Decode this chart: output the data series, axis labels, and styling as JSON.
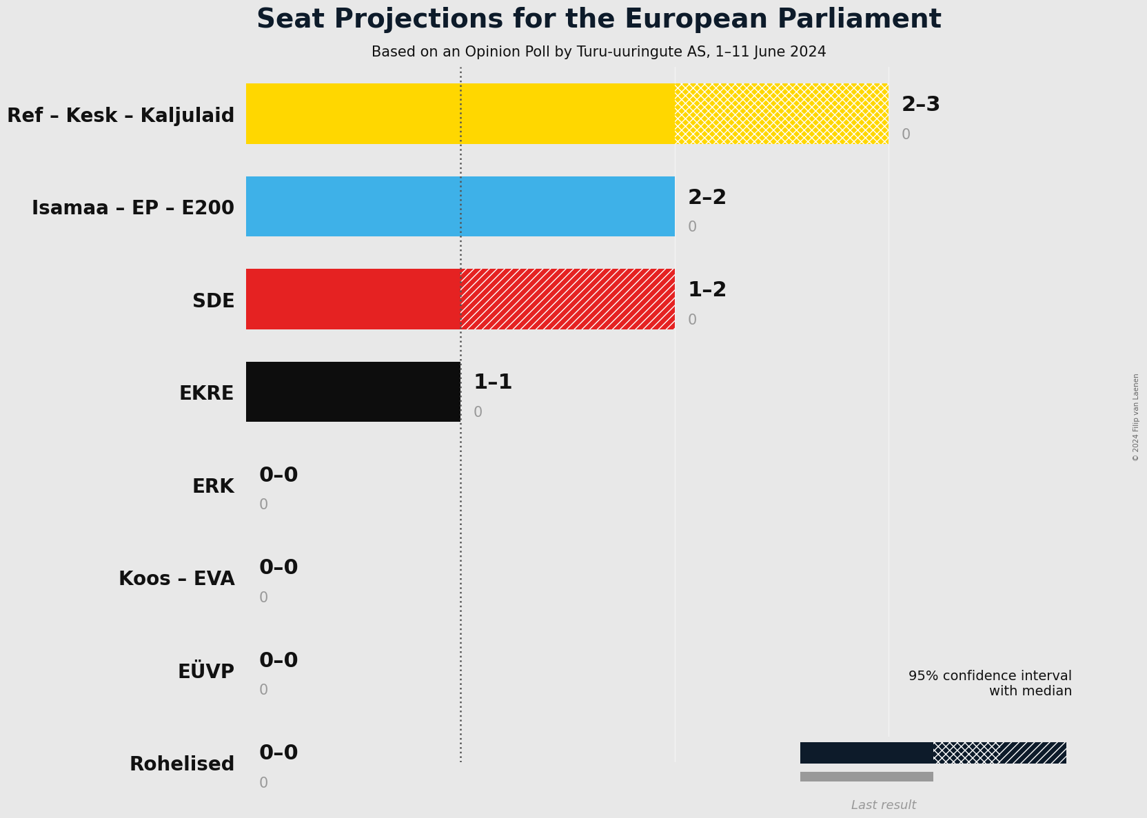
{
  "title": "Seat Projections for the European Parliament",
  "subtitle": "Based on an Opinion Poll by Turu-uuringute AS, 1–11 June 2024",
  "copyright": "© 2024 Filip van Laenen",
  "background_color": "#E8E8E8",
  "parties": [
    "Ref – Kesk – Kaljulaid",
    "Isamaa – EP – E200",
    "SDE",
    "EKRE",
    "ERK",
    "Koos – EVA",
    "EÜVP",
    "Rohelised"
  ],
  "median": [
    2,
    2,
    1,
    1,
    0,
    0,
    0,
    0
  ],
  "low": [
    2,
    2,
    1,
    1,
    0,
    0,
    0,
    0
  ],
  "high": [
    3,
    2,
    2,
    1,
    0,
    0,
    0,
    0
  ],
  "last_result": [
    0,
    0,
    0,
    0,
    0,
    0,
    0,
    0
  ],
  "label": [
    "2–3",
    "2–2",
    "1–2",
    "1–1",
    "0–0",
    "0–0",
    "0–0",
    "0–0"
  ],
  "colors": [
    "#FFD700",
    "#3EB1E8",
    "#E52222",
    "#0D0D0D",
    "#888888",
    "#888888",
    "#888888",
    "#888888"
  ],
  "xlim_max": 3.5,
  "dotted_line_x": 1,
  "legend_label_ci": "95% confidence interval\nwith median",
  "legend_label_last": "Last result",
  "legend_color_dark": "#0D1B2A",
  "legend_color_gray": "#999999",
  "subtitle_fontsize": 15,
  "title_fontsize": 28,
  "ylabel_fontsize": 20,
  "label_fontsize": 22,
  "last_label_fontsize": 15
}
